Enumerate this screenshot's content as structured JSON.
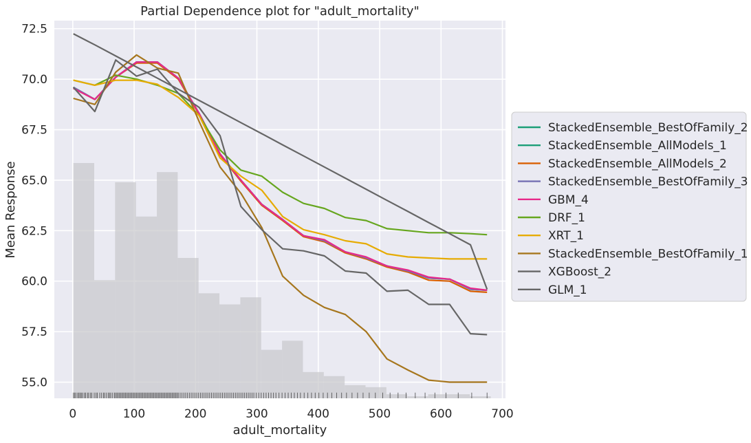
{
  "chart_data": {
    "type": "line",
    "title": "Partial Dependence plot for \"adult_mortality\"",
    "xlabel": "adult_mortality",
    "ylabel": "Mean Response",
    "xlim": [
      -30,
      705
    ],
    "ylim": [
      54.2,
      72.9
    ],
    "x_ticks": [
      0,
      100,
      200,
      300,
      400,
      500,
      600,
      700
    ],
    "y_ticks": [
      55.0,
      57.5,
      60.0,
      62.5,
      65.0,
      67.5,
      70.0,
      72.5
    ],
    "x_tick_labels": [
      "0",
      "100",
      "200",
      "300",
      "400",
      "500",
      "600",
      "700"
    ],
    "y_tick_labels": [
      "55.0",
      "57.5",
      "60.0",
      "62.5",
      "65.0",
      "67.5",
      "70.0",
      "72.5"
    ],
    "grid": true,
    "legend_position": "right",
    "x": [
      1,
      36,
      70,
      104,
      138,
      172,
      206,
      240,
      274,
      308,
      342,
      376,
      410,
      444,
      478,
      512,
      546,
      580,
      614,
      648,
      675
    ],
    "series": [
      {
        "name": "StackedEnsemble_BestOfFamily_2",
        "color": "#1b9e77",
        "values": [
          69.6,
          69.0,
          70.1,
          70.85,
          70.85,
          70.05,
          68.3,
          66.3,
          65.0,
          63.8,
          63.05,
          62.25,
          62.0,
          61.45,
          61.15,
          60.75,
          60.5,
          60.15,
          60.1,
          59.6,
          59.55
        ]
      },
      {
        "name": "StackedEnsemble_AllModels_1",
        "color": "#1b9e77",
        "values": [
          69.6,
          69.0,
          70.1,
          70.85,
          70.85,
          70.05,
          68.3,
          66.3,
          65.0,
          63.8,
          63.05,
          62.25,
          62.0,
          61.45,
          61.15,
          60.75,
          60.5,
          60.15,
          60.1,
          59.6,
          59.55
        ]
      },
      {
        "name": "StackedEnsemble_AllModels_2",
        "color": "#d95f02",
        "values": [
          69.55,
          69.0,
          70.1,
          70.8,
          70.8,
          70.0,
          68.25,
          66.25,
          64.95,
          63.75,
          63.0,
          62.2,
          61.95,
          61.4,
          61.1,
          60.7,
          60.45,
          60.05,
          60.0,
          59.5,
          59.45
        ]
      },
      {
        "name": "StackedEnsemble_BestOfFamily_3",
        "color": "#7570b3",
        "values": [
          69.6,
          69.0,
          70.1,
          70.85,
          70.85,
          70.05,
          68.3,
          66.3,
          65.0,
          63.8,
          63.05,
          62.25,
          62.0,
          61.45,
          61.15,
          60.75,
          60.5,
          60.15,
          60.1,
          59.6,
          59.55
        ]
      },
      {
        "name": "GBM_4",
        "color": "#e7298a",
        "values": [
          69.55,
          69.0,
          70.1,
          70.85,
          70.85,
          70.05,
          68.3,
          66.3,
          65.0,
          63.8,
          63.05,
          62.25,
          62.05,
          61.45,
          61.2,
          60.75,
          60.55,
          60.2,
          60.1,
          59.65,
          59.55
        ]
      },
      {
        "name": "DRF_1",
        "color": "#66a61e",
        "values": [
          69.95,
          69.7,
          70.2,
          70.0,
          69.7,
          69.3,
          68.2,
          66.5,
          65.5,
          65.2,
          64.4,
          63.85,
          63.6,
          63.15,
          63.0,
          62.6,
          62.5,
          62.4,
          62.4,
          62.35,
          62.3
        ]
      },
      {
        "name": "XRT_1",
        "color": "#e6ab02",
        "values": [
          69.95,
          69.7,
          69.95,
          69.95,
          69.75,
          69.1,
          68.2,
          66.1,
          65.2,
          64.5,
          63.2,
          62.55,
          62.3,
          62.0,
          61.85,
          61.35,
          61.2,
          61.15,
          61.1,
          61.1,
          61.1
        ]
      },
      {
        "name": "StackedEnsemble_BestOfFamily_1",
        "color": "#a6761d",
        "values": [
          69.05,
          68.75,
          70.35,
          71.2,
          70.55,
          70.3,
          67.9,
          65.65,
          64.35,
          62.65,
          60.25,
          59.3,
          58.7,
          58.35,
          57.5,
          56.15,
          55.6,
          55.1,
          55.0,
          55.0,
          55.0
        ]
      },
      {
        "name": "XGBoost_2",
        "color": "#666666",
        "values": [
          69.6,
          68.4,
          70.95,
          70.15,
          70.5,
          69.3,
          68.6,
          67.2,
          63.7,
          62.55,
          61.6,
          61.5,
          61.25,
          60.5,
          60.4,
          59.5,
          59.55,
          58.85,
          58.85,
          57.4,
          57.35
        ]
      },
      {
        "name": "GLM_1",
        "color": "#666666",
        "values": [
          72.25,
          71.7,
          71.15,
          70.6,
          70.05,
          69.5,
          68.95,
          68.4,
          67.85,
          67.3,
          66.75,
          66.2,
          65.65,
          65.1,
          64.55,
          64.0,
          63.45,
          62.9,
          62.35,
          61.8,
          59.6
        ]
      }
    ],
    "histogram": {
      "bins": [
        {
          "x0": 1,
          "x1": 35,
          "value": 65.85
        },
        {
          "x0": 35,
          "x1": 69,
          "value": 60.05
        },
        {
          "x0": 69,
          "x1": 103,
          "value": 64.9
        },
        {
          "x0": 103,
          "x1": 137,
          "value": 63.2
        },
        {
          "x0": 137,
          "x1": 171,
          "value": 65.4
        },
        {
          "x0": 171,
          "x1": 205,
          "value": 61.15
        },
        {
          "x0": 205,
          "x1": 239,
          "value": 59.4
        },
        {
          "x0": 239,
          "x1": 273,
          "value": 58.85
        },
        {
          "x0": 273,
          "x1": 307,
          "value": 59.2
        },
        {
          "x0": 307,
          "x1": 341,
          "value": 56.6
        },
        {
          "x0": 341,
          "x1": 375,
          "value": 57.05
        },
        {
          "x0": 375,
          "x1": 409,
          "value": 55.5
        },
        {
          "x0": 409,
          "x1": 443,
          "value": 55.3
        },
        {
          "x0": 443,
          "x1": 477,
          "value": 54.85
        },
        {
          "x0": 477,
          "x1": 511,
          "value": 54.75
        },
        {
          "x0": 511,
          "x1": 545,
          "value": 54.4
        },
        {
          "x0": 545,
          "x1": 579,
          "value": 54.3
        },
        {
          "x0": 579,
          "x1": 613,
          "value": 54.4
        },
        {
          "x0": 613,
          "x1": 647,
          "value": 54.4
        },
        {
          "x0": 647,
          "x1": 681,
          "value": 54.3
        }
      ]
    },
    "rug": {
      "y0": 54.2,
      "y1": 54.48,
      "x": [
        1,
        3,
        5,
        8,
        10,
        12,
        14,
        16,
        19,
        21,
        24,
        26,
        29,
        31,
        35,
        38,
        40,
        44,
        47,
        50,
        52,
        55,
        58,
        60,
        62,
        65,
        68,
        70,
        72,
        74,
        76,
        78,
        80,
        82,
        84,
        86,
        88,
        90,
        92,
        94,
        96,
        98,
        100,
        102,
        104,
        106,
        108,
        110,
        112,
        114,
        116,
        118,
        120,
        122,
        124,
        126,
        128,
        130,
        132,
        134,
        136,
        138,
        140,
        142,
        144,
        146,
        148,
        150,
        152,
        154,
        156,
        158,
        160,
        162,
        164,
        166,
        168,
        170,
        172,
        175,
        178,
        181,
        184,
        187,
        190,
        193,
        196,
        199,
        202,
        205,
        208,
        211,
        214,
        217,
        220,
        223,
        226,
        229,
        232,
        235,
        238,
        241,
        244,
        247,
        250,
        253,
        256,
        259,
        262,
        265,
        268,
        271,
        274,
        277,
        280,
        283,
        286,
        289,
        292,
        295,
        299,
        303,
        307,
        311,
        315,
        319,
        323,
        327,
        331,
        336,
        341,
        346,
        351,
        356,
        361,
        366,
        371,
        377,
        383,
        389,
        395,
        401,
        408,
        415,
        422,
        430,
        438,
        446,
        455,
        464,
        473,
        483,
        493,
        505,
        517,
        530,
        543,
        558,
        574,
        590,
        608,
        628,
        650,
        675
      ]
    }
  }
}
